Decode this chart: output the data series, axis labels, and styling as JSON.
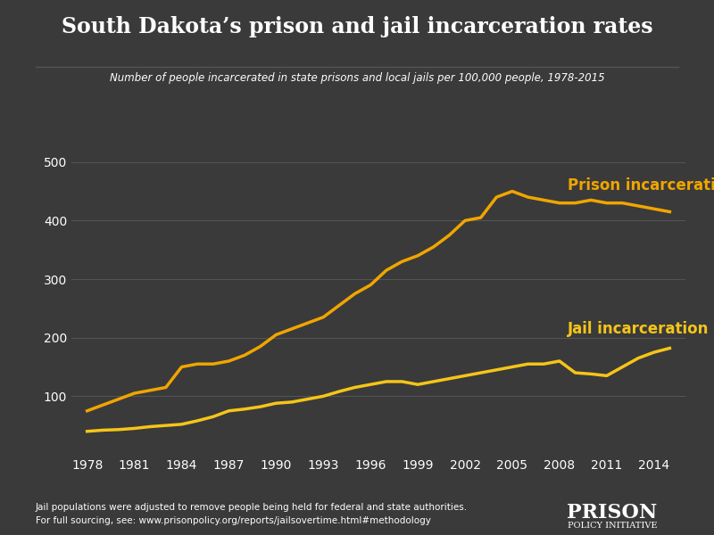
{
  "title": "South Dakota’s prison and jail incarceration rates",
  "subtitle": "Number of people incarcerated in state prisons and local jails per 100,000 people, 1978-2015",
  "footnote1": "Jail populations were adjusted to remove people being held for federal and state authorities.",
  "footnote2": "For full sourcing, see: www.prisonpolicy.org/reports/jailsovertime.html#methodology",
  "footnote_url": "www.prisonpolicy.org/reports/jailsovertime.html#methodology",
  "background_color": "#3a3a3a",
  "text_color": "#ffffff",
  "label_color": "#f0a500",
  "prison_color": "#f0a500",
  "jail_color": "#f5c518",
  "grid_color": "#555555",
  "prison_label": "Prison incarceration rate",
  "jail_label": "Jail incarceration rate",
  "years": [
    1978,
    1979,
    1980,
    1981,
    1982,
    1983,
    1984,
    1985,
    1986,
    1987,
    1988,
    1989,
    1990,
    1991,
    1992,
    1993,
    1994,
    1995,
    1996,
    1997,
    1998,
    1999,
    2000,
    2001,
    2002,
    2003,
    2004,
    2005,
    2006,
    2007,
    2008,
    2009,
    2010,
    2011,
    2012,
    2013,
    2014,
    2015
  ],
  "prison_values": [
    75,
    85,
    95,
    105,
    110,
    115,
    150,
    155,
    155,
    160,
    170,
    185,
    205,
    215,
    225,
    235,
    255,
    275,
    290,
    315,
    330,
    340,
    355,
    375,
    400,
    405,
    440,
    450,
    440,
    435,
    430,
    430,
    435,
    430,
    430,
    425,
    420,
    415
  ],
  "jail_values": [
    40,
    42,
    43,
    45,
    48,
    50,
    52,
    58,
    65,
    75,
    78,
    82,
    88,
    90,
    95,
    100,
    108,
    115,
    120,
    125,
    125,
    120,
    125,
    130,
    135,
    140,
    145,
    150,
    155,
    155,
    160,
    140,
    138,
    135,
    150,
    165,
    175,
    182
  ],
  "yticks": [
    100,
    200,
    300,
    400,
    500
  ],
  "xticks": [
    1978,
    1981,
    1984,
    1987,
    1990,
    1993,
    1996,
    1999,
    2002,
    2005,
    2008,
    2011,
    2014
  ],
  "ylim": [
    0,
    530
  ],
  "xlim": [
    1977,
    2016
  ]
}
